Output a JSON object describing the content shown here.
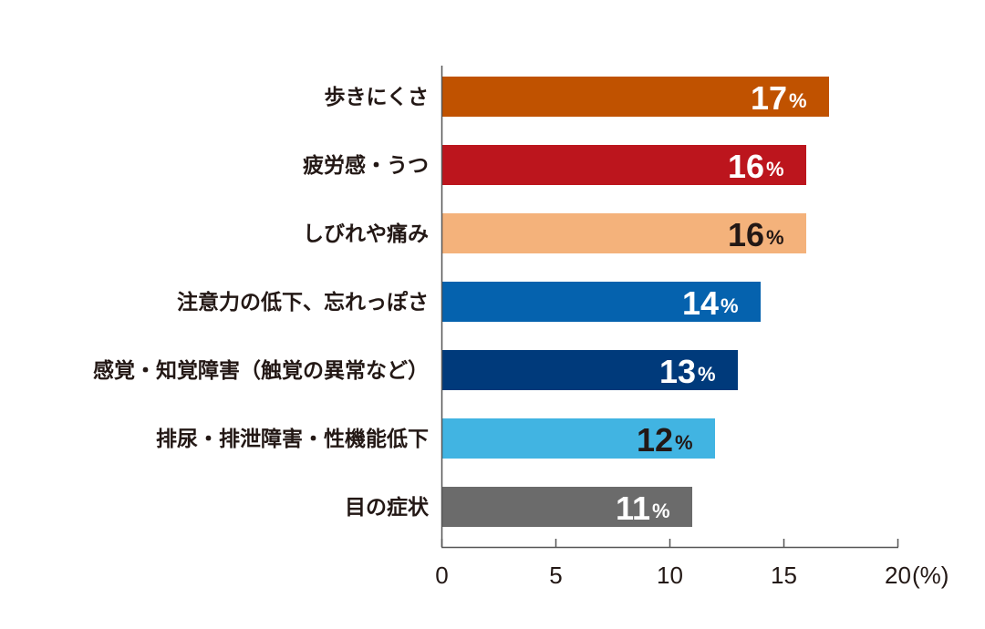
{
  "chart_data": {
    "type": "bar",
    "orientation": "horizontal",
    "categories": [
      "歩きにくさ",
      "疲労感・うつ",
      "しびれや痛み",
      "注意力の低下、忘れっぽさ",
      "感覚・知覚障害（触覚の異常など）",
      "排尿・排泄障害・性機能低下",
      "目の症状"
    ],
    "values": [
      17,
      16,
      16,
      14,
      13,
      12,
      11
    ],
    "value_suffix": "%",
    "colors": [
      "#c05200",
      "#bc151d",
      "#f4b27b",
      "#0562ae",
      "#003a7b",
      "#41b4e2",
      "#6b6b6b"
    ],
    "label_colors": [
      "#ffffff",
      "#ffffff",
      "#231815",
      "#ffffff",
      "#ffffff",
      "#231815",
      "#ffffff"
    ],
    "xlim": [
      0,
      20
    ],
    "xticks": [
      0,
      5,
      10,
      15,
      20
    ],
    "xunit": "(%)",
    "grid": false
  }
}
